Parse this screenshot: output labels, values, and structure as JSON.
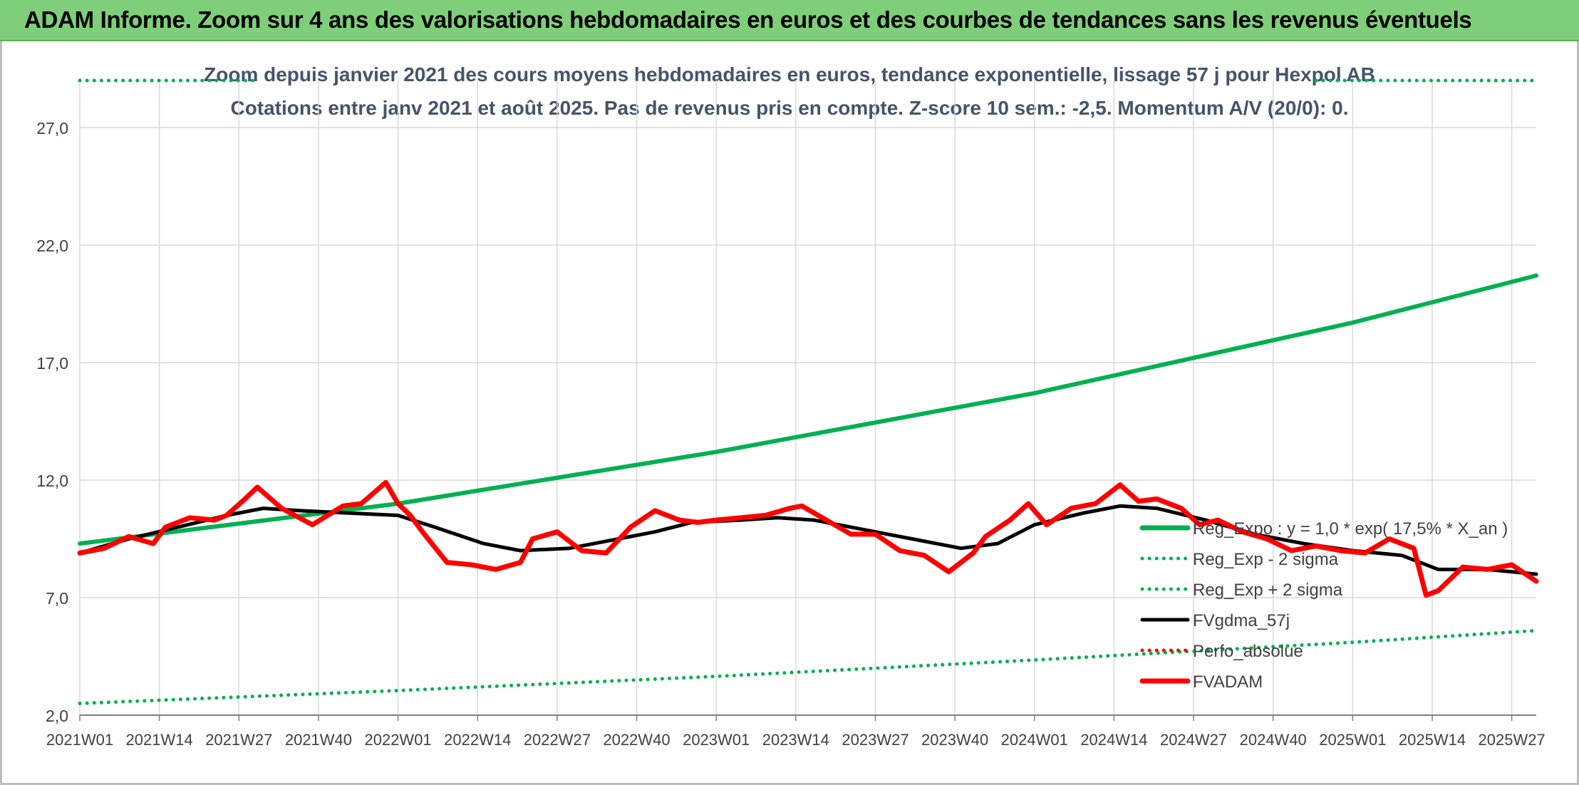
{
  "banner": {
    "title": "ADAM Informe. Zoom sur 4 ans des valorisations hebdomadaires en euros et des courbes de tendances sans les revenus éventuels",
    "color": "#7fcf7a"
  },
  "chart_data": {
    "type": "line",
    "title": "Zoom depuis janvier 2021 des cours moyens hebdomadaires en euros, tendance exponentielle, lissage 57 j pour Hexpol AB",
    "subtitle": "Cotations entre janv 2021 et août 2025. Pas de revenus pris en compte. Z-score 10 sem.: -2,5. Momentum A/V (20/0): 0.",
    "xlabel": "",
    "ylabel": "",
    "ylim": [
      2.0,
      29.0
    ],
    "y_ticks": [
      "2,0",
      "7,0",
      "12,0",
      "17,0",
      "22,0",
      "27,0"
    ],
    "y_tick_values": [
      2,
      7,
      12,
      17,
      22,
      27
    ],
    "x_ticks": [
      "2021W01",
      "2021W14",
      "2021W27",
      "2021W40",
      "2022W01",
      "2022W14",
      "2022W27",
      "2022W40",
      "2023W01",
      "2023W14",
      "2023W27",
      "2023W40",
      "2024W01",
      "2024W14",
      "2024W27",
      "2024W40",
      "2025W01",
      "2025W14",
      "2025W27"
    ],
    "x_tick_week_index": [
      0,
      13,
      26,
      39,
      52,
      65,
      78,
      91,
      104,
      117,
      130,
      143,
      156,
      169,
      182,
      195,
      208,
      221,
      234
    ],
    "x_range_week_index": [
      0,
      238
    ],
    "grid": true,
    "legend_position": "right",
    "series": [
      {
        "name": "Reg_Expo : y = 1,0 * exp( 17,5% *  X_an )",
        "style": "solid",
        "color": "#00b050",
        "x_week_index": [
          0,
          52,
          104,
          156,
          208,
          238
        ],
        "values": [
          9.3,
          11.0,
          13.2,
          15.7,
          18.7,
          20.7
        ]
      },
      {
        "name": "Reg_Exp - 2 sigma",
        "style": "dotted",
        "color": "#00b050",
        "x_week_index": [
          0,
          52,
          104,
          156,
          208,
          238
        ],
        "values": [
          2.5,
          3.05,
          3.65,
          4.35,
          5.1,
          5.6
        ]
      },
      {
        "name": "Reg_Exp + 2 sigma",
        "style": "dotted",
        "color": "#00b050",
        "x_week_index": [
          0,
          29,
          202,
          238
        ],
        "values": [
          29.0,
          29.0,
          29.0,
          29.0
        ]
      },
      {
        "name": "FVgdma_57j",
        "style": "solid",
        "color": "#000000",
        "x_week_index": [
          0,
          8,
          16,
          24,
          30,
          36,
          44,
          52,
          58,
          66,
          72,
          80,
          86,
          94,
          100,
          108,
          114,
          120,
          128,
          136,
          144,
          150,
          156,
          164,
          170,
          176,
          184,
          192,
          200,
          208,
          216,
          222,
          230,
          238
        ],
        "values": [
          8.9,
          9.5,
          10.0,
          10.5,
          10.8,
          10.7,
          10.6,
          10.5,
          10.0,
          9.3,
          9.0,
          9.1,
          9.4,
          9.8,
          10.2,
          10.3,
          10.4,
          10.3,
          9.9,
          9.5,
          9.1,
          9.3,
          10.1,
          10.6,
          10.9,
          10.8,
          10.3,
          9.7,
          9.3,
          9.0,
          8.8,
          8.2,
          8.2,
          8.0
        ]
      },
      {
        "name": "Perfo_absolue",
        "style": "dotted",
        "color": "#ff0000",
        "x_week_index": [],
        "values": []
      },
      {
        "name": "FVADAM",
        "style": "solid",
        "color": "#ff0000",
        "x_week_index": [
          0,
          4,
          8,
          12,
          14,
          18,
          22,
          24,
          27,
          29,
          33,
          38,
          43,
          46,
          50,
          52,
          54,
          56,
          60,
          64,
          68,
          72,
          74,
          78,
          82,
          86,
          90,
          94,
          98,
          101,
          104,
          108,
          112,
          116,
          118,
          122,
          126,
          130,
          134,
          138,
          142,
          146,
          148,
          152,
          155,
          158,
          162,
          166,
          170,
          173,
          176,
          180,
          183,
          186,
          190,
          194,
          198,
          202,
          206,
          210,
          214,
          218,
          220,
          222,
          226,
          230,
          234,
          238
        ],
        "values": [
          8.9,
          9.1,
          9.6,
          9.3,
          10.0,
          10.4,
          10.3,
          10.5,
          11.2,
          11.7,
          10.8,
          10.1,
          10.9,
          11.0,
          11.9,
          11.0,
          10.5,
          9.8,
          8.5,
          8.4,
          8.2,
          8.5,
          9.5,
          9.8,
          9.0,
          8.9,
          10.0,
          10.7,
          10.3,
          10.2,
          10.3,
          10.4,
          10.5,
          10.8,
          10.9,
          10.3,
          9.7,
          9.7,
          9.0,
          8.8,
          8.1,
          8.9,
          9.6,
          10.3,
          11.0,
          10.1,
          10.8,
          11.0,
          11.8,
          11.1,
          11.2,
          10.8,
          10.1,
          10.3,
          9.8,
          9.5,
          9.0,
          9.2,
          9.0,
          8.9,
          9.5,
          9.1,
          7.1,
          7.3,
          8.3,
          8.2,
          8.4,
          7.7
        ]
      }
    ]
  }
}
